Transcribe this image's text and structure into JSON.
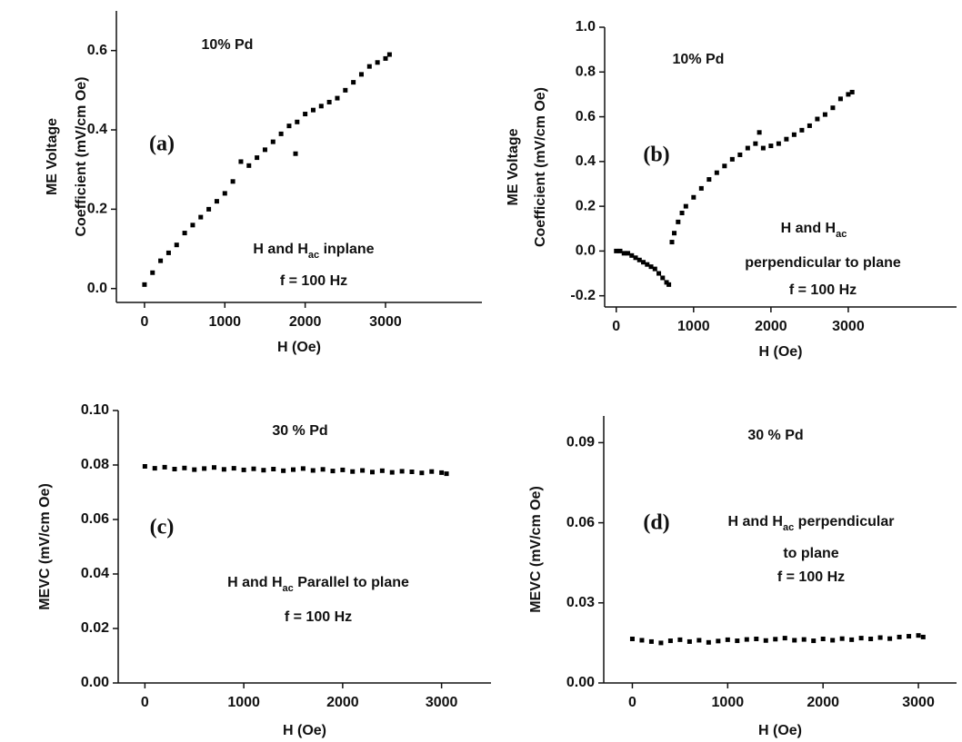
{
  "chart_data": [
    {
      "type": "scatter",
      "panel_label": "(a)",
      "xlabel": "H (Oe)",
      "ylabel": [
        "ME Voltage",
        "Coefficient (mV/cm Oe)"
      ],
      "annotations": [
        [
          "10% Pd"
        ],
        [
          "H and H",
          "ac",
          " inplane"
        ],
        [
          "f = 100 Hz"
        ]
      ],
      "color": "#000000",
      "xlim": [
        -350,
        4200
      ],
      "ylim": [
        -0.035,
        0.7
      ],
      "xticks": [
        0,
        1000,
        2000,
        3000
      ],
      "yticks": [
        {
          "value": 0,
          "label": "0.0"
        },
        0.2,
        0.4,
        0.6
      ],
      "x": [
        0,
        100,
        200,
        300,
        400,
        500,
        600,
        700,
        800,
        900,
        1000,
        1100,
        1200,
        1300,
        1400,
        1500,
        1600,
        1700,
        1800,
        1880,
        1900,
        2000,
        2100,
        2200,
        2300,
        2400,
        2500,
        2600,
        2700,
        2800,
        2900,
        3000,
        3050
      ],
      "values": [
        0.01,
        0.04,
        0.07,
        0.09,
        0.11,
        0.14,
        0.16,
        0.18,
        0.2,
        0.22,
        0.24,
        0.27,
        0.32,
        0.31,
        0.33,
        0.35,
        0.37,
        0.39,
        0.41,
        0.34,
        0.42,
        0.44,
        0.45,
        0.46,
        0.47,
        0.48,
        0.5,
        0.52,
        0.54,
        0.56,
        0.57,
        0.58,
        0.59
      ]
    },
    {
      "type": "scatter",
      "panel_label": "(b)",
      "xlabel": "H (Oe)",
      "ylabel": [
        "ME Voltage",
        "Coefficient (mV/cm Oe)"
      ],
      "annotations": [
        [
          "10% Pd"
        ],
        [
          "H and H",
          "ac"
        ],
        [
          "perpendicular to plane"
        ],
        [
          "f = 100 Hz"
        ]
      ],
      "color": "#000000",
      "xlim": [
        -150,
        4400
      ],
      "ylim": [
        -0.25,
        1.0
      ],
      "xticks": [
        0,
        1000,
        2000,
        3000
      ],
      "yticks": [
        -0.2,
        {
          "value": 0,
          "label": "0.0"
        },
        0.2,
        0.4,
        0.6,
        0.8,
        {
          "value": 1,
          "label": "1.0"
        }
      ],
      "x": [
        0,
        50,
        100,
        150,
        200,
        250,
        300,
        350,
        400,
        450,
        500,
        550,
        600,
        650,
        680,
        720,
        750,
        800,
        850,
        900,
        1000,
        1100,
        1200,
        1300,
        1400,
        1500,
        1600,
        1700,
        1800,
        1850,
        1900,
        2000,
        2100,
        2200,
        2300,
        2400,
        2500,
        2600,
        2700,
        2800,
        2900,
        3000,
        3050
      ],
      "values": [
        0,
        0,
        -0.01,
        -0.01,
        -0.02,
        -0.03,
        -0.04,
        -0.05,
        -0.06,
        -0.07,
        -0.08,
        -0.1,
        -0.12,
        -0.14,
        -0.15,
        0.04,
        0.08,
        0.13,
        0.17,
        0.2,
        0.24,
        0.28,
        0.32,
        0.35,
        0.38,
        0.41,
        0.43,
        0.46,
        0.48,
        0.53,
        0.46,
        0.47,
        0.48,
        0.5,
        0.52,
        0.54,
        0.56,
        0.59,
        0.61,
        0.64,
        0.68,
        0.7,
        0.71
      ]
    },
    {
      "type": "scatter",
      "panel_label": "(c)",
      "xlabel": "H (Oe)",
      "ylabel": [
        "MEVC (mV/cm Oe)"
      ],
      "annotations": [
        [
          "30 % Pd"
        ],
        [
          "H and H",
          "ac",
          " Parallel to plane"
        ],
        [
          "f = 100 Hz"
        ]
      ],
      "color": "#000000",
      "xlim": [
        -270,
        3500
      ],
      "ylim": [
        0,
        0.1
      ],
      "xticks": [
        0,
        1000,
        2000,
        3000
      ],
      "yticks": [
        {
          "value": 0,
          "label": "0.00"
        },
        {
          "value": 0.02,
          "label": "0.02"
        },
        {
          "value": 0.04,
          "label": "0.04"
        },
        {
          "value": 0.06,
          "label": "0.06"
        },
        {
          "value": 0.08,
          "label": "0.08"
        },
        {
          "value": 0.1,
          "label": "0.10"
        }
      ],
      "x": [
        0,
        100,
        200,
        300,
        400,
        500,
        600,
        700,
        800,
        900,
        1000,
        1100,
        1200,
        1300,
        1400,
        1500,
        1600,
        1700,
        1800,
        1900,
        2000,
        2100,
        2200,
        2300,
        2400,
        2500,
        2600,
        2700,
        2800,
        2900,
        3000,
        3050
      ],
      "values": [
        0.0795,
        0.0788,
        0.0792,
        0.0785,
        0.0789,
        0.0783,
        0.0787,
        0.0791,
        0.0784,
        0.0788,
        0.0782,
        0.0786,
        0.0781,
        0.0785,
        0.0779,
        0.0783,
        0.0787,
        0.078,
        0.0784,
        0.0778,
        0.0782,
        0.0776,
        0.078,
        0.0774,
        0.0779,
        0.0773,
        0.0777,
        0.0775,
        0.0771,
        0.0776,
        0.0772,
        0.0768
      ]
    },
    {
      "type": "scatter",
      "panel_label": "(d)",
      "xlabel": "H (Oe)",
      "ylabel": [
        "MEVC (mV/cm Oe)"
      ],
      "annotations": [
        [
          "30 % Pd"
        ],
        [
          "H and H",
          "ac",
          " perpendicular"
        ],
        [
          "to plane"
        ],
        [
          "f = 100 Hz"
        ]
      ],
      "color": "#000000",
      "xlim": [
        -300,
        3400
      ],
      "ylim": [
        0,
        0.1
      ],
      "xticks": [
        0,
        1000,
        2000,
        3000
      ],
      "yticks": [
        {
          "value": 0,
          "label": "0.00"
        },
        {
          "value": 0.03,
          "label": "0.03"
        },
        {
          "value": 0.06,
          "label": "0.06"
        },
        {
          "value": 0.09,
          "label": "0.09"
        }
      ],
      "x": [
        0,
        100,
        200,
        300,
        400,
        500,
        600,
        700,
        800,
        900,
        1000,
        1100,
        1200,
        1300,
        1400,
        1500,
        1600,
        1700,
        1800,
        1900,
        2000,
        2100,
        2200,
        2300,
        2400,
        2500,
        2600,
        2700,
        2800,
        2900,
        3000,
        3050
      ],
      "values": [
        0.0165,
        0.016,
        0.0155,
        0.015,
        0.0158,
        0.0162,
        0.0155,
        0.016,
        0.0152,
        0.0157,
        0.0162,
        0.0158,
        0.0163,
        0.0165,
        0.0159,
        0.0164,
        0.0168,
        0.016,
        0.0163,
        0.0158,
        0.0165,
        0.016,
        0.0166,
        0.0162,
        0.0168,
        0.0165,
        0.017,
        0.0166,
        0.0172,
        0.0175,
        0.0178,
        0.0172
      ]
    }
  ]
}
